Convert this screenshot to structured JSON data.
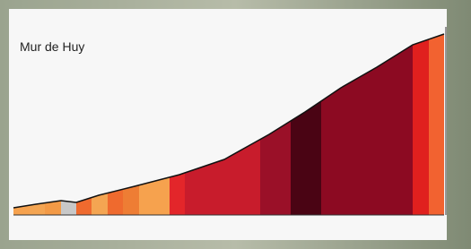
{
  "title": "Mur de Huy"
}
